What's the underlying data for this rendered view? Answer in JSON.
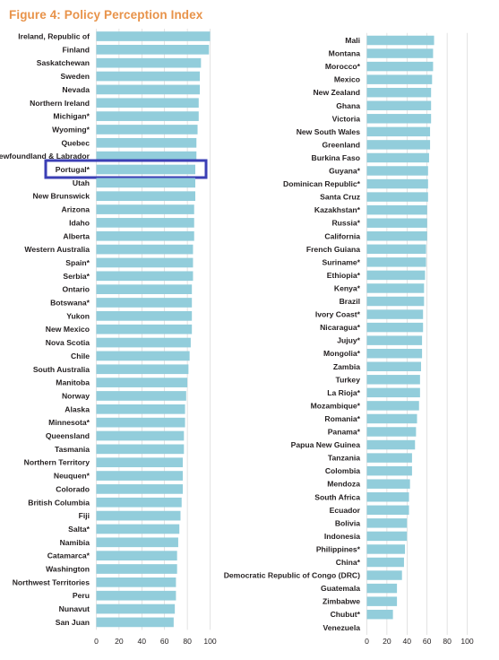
{
  "title": "Figure 4: Policy Perception Index",
  "colors": {
    "bar": "#92cddb",
    "grid": "#d0d0d0",
    "highlight": "#3b3fb5",
    "title": "#e8934a"
  },
  "chart_data": [
    {
      "type": "bar",
      "orientation": "horizontal",
      "xlim": [
        0,
        100
      ],
      "xticks": [
        "0",
        "20",
        "40",
        "60",
        "80",
        "100"
      ],
      "highlight": "Portugal*",
      "categories": [
        "Ireland, Republic of",
        "Finland",
        "Saskatchewan",
        "Sweden",
        "Nevada",
        "Northern Ireland",
        "Michigan*",
        "Wyoming*",
        "Quebec",
        "Newfoundland & Labrador",
        "Portugal*",
        "Utah",
        "New Brunswick",
        "Arizona",
        "Idaho",
        "Alberta",
        "Western Australia",
        "Spain*",
        "Serbia*",
        "Ontario",
        "Botswana*",
        "Yukon",
        "New Mexico",
        "Nova Scotia",
        "Chile",
        "South Australia",
        "Manitoba",
        "Norway",
        "Alaska",
        "Minnesota*",
        "Queensland",
        "Tasmania",
        "Northern Territory",
        "Neuquen*",
        "Colorado",
        "British Columbia",
        "Fiji",
        "Salta*",
        "Namibia",
        "Catamarca*",
        "Washington",
        "Northwest Territories",
        "Peru",
        "Nunavut",
        "San Juan"
      ],
      "values": [
        100,
        99,
        92,
        91,
        91,
        90,
        90,
        89,
        88,
        88,
        87,
        87,
        87,
        86,
        86,
        86,
        85,
        85,
        85,
        84,
        84,
        84,
        84,
        83,
        82,
        81,
        80,
        79,
        78,
        78,
        77,
        77,
        76,
        76,
        76,
        75,
        74,
        73,
        72,
        71,
        71,
        70,
        70,
        69,
        68
      ]
    },
    {
      "type": "bar",
      "orientation": "horizontal",
      "xlim": [
        0,
        100
      ],
      "xticks": [
        "0",
        "20",
        "40",
        "60",
        "80",
        "100"
      ],
      "categories": [
        "Mali",
        "Montana",
        "Morocco*",
        "Mexico",
        "New Zealand",
        "Ghana",
        "Victoria",
        "New South Wales",
        "Greenland",
        "Burkina Faso",
        "Guyana*",
        "Dominican Republic*",
        "Santa Cruz",
        "Kazakhstan*",
        "Russia*",
        "California",
        "French Guiana",
        "Suriname*",
        "Ethiopia*",
        "Kenya*",
        "Brazil",
        "Ivory Coast*",
        "Nicaragua*",
        "Jujuy*",
        "Mongolia*",
        "Zambia",
        "Turkey",
        "La Rioja*",
        "Mozambique*",
        "Romania*",
        "Panama*",
        "Papua New Guinea",
        "Tanzania",
        "Colombia",
        "Mendoza",
        "South Africa",
        "Ecuador",
        "Bolivia",
        "Indonesia",
        "Philippines*",
        "China*",
        "Democratic Republic of Congo (DRC)",
        "Guatemala",
        "Zimbabwe",
        "Chubut*",
        "Venezuela"
      ],
      "values": [
        67,
        66,
        66,
        65,
        64,
        64,
        64,
        63,
        63,
        62,
        61,
        61,
        61,
        60,
        60,
        60,
        59,
        59,
        58,
        57,
        57,
        56,
        56,
        55,
        55,
        54,
        53,
        53,
        52,
        50,
        49,
        48,
        45,
        45,
        43,
        42,
        42,
        40,
        40,
        38,
        37,
        35,
        30,
        30,
        26,
        0
      ]
    }
  ]
}
